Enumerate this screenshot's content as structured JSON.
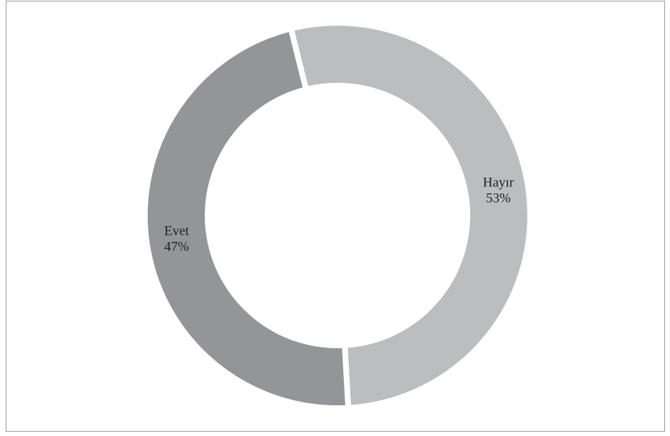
{
  "chart_data": {
    "type": "donut",
    "categories": [
      "Hayır",
      "Evet"
    ],
    "values": [
      53,
      47
    ],
    "value_labels": [
      "53%",
      "47%"
    ],
    "colors": [
      "#bbbdbe",
      "#939598"
    ]
  }
}
